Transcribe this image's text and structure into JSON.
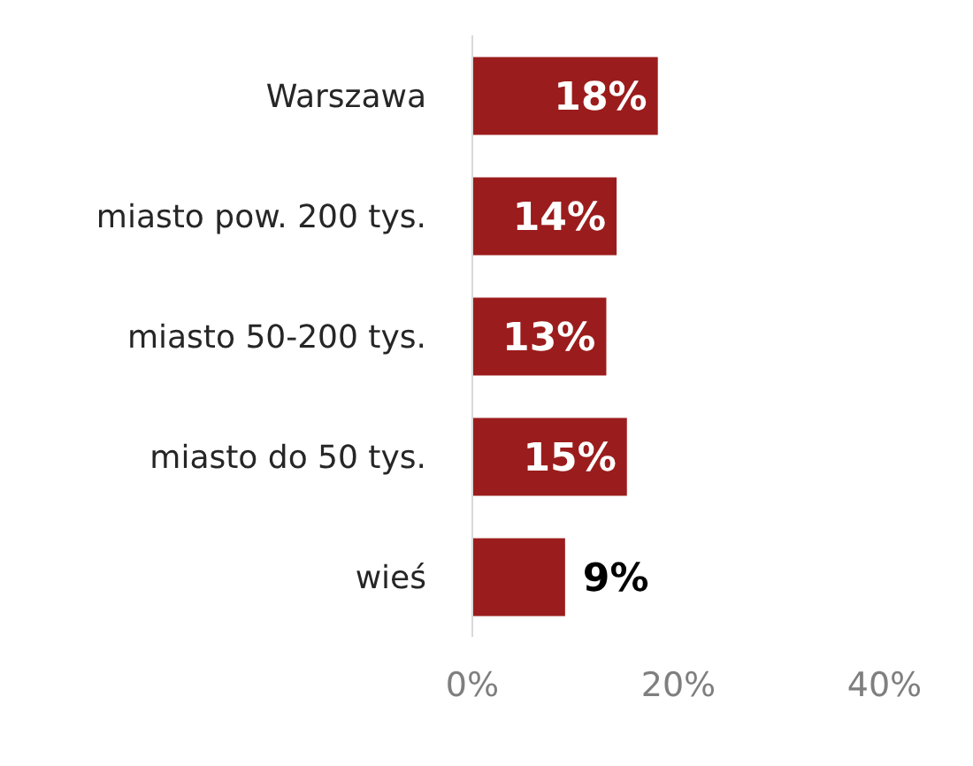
{
  "chart_data": {
    "type": "bar",
    "orientation": "horizontal",
    "categories": [
      "Warszawa",
      "miasto pow. 200 tys.",
      "miasto 50-200 tys.",
      "miasto do 50 tys.",
      "wieś"
    ],
    "values": [
      18,
      14,
      13,
      15,
      9
    ],
    "color": "#9b1c1c",
    "value_labels": [
      "18%",
      "14%",
      "13%",
      "15%",
      "9%"
    ],
    "xlim": [
      0,
      40
    ],
    "xticks": [
      {
        "value": 0,
        "label": "0%"
      },
      {
        "value": 20,
        "label": "20%"
      },
      {
        "value": 40,
        "label": "40%"
      }
    ],
    "grid": false
  }
}
